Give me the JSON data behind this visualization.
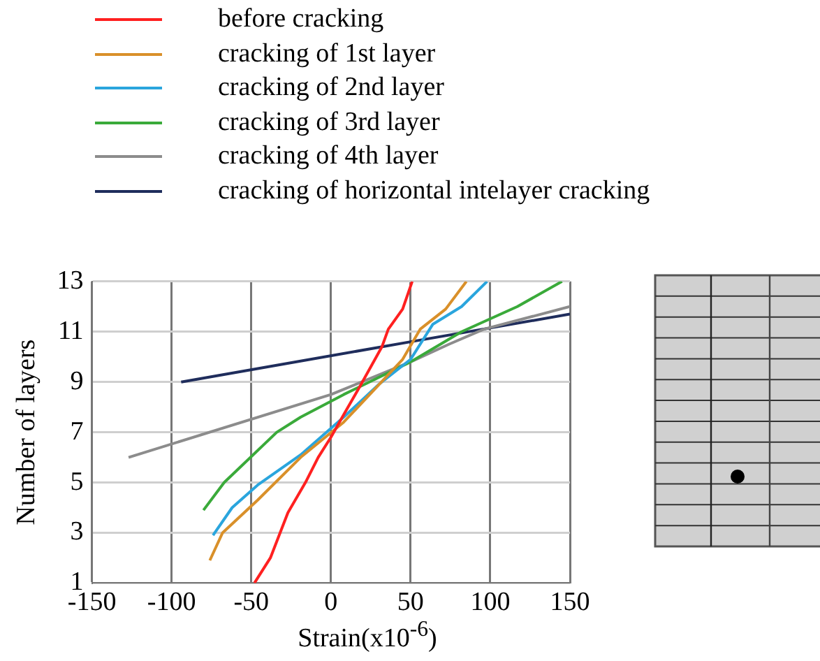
{
  "chart_data": {
    "type": "line",
    "xlabel": "Strain(x10$^{-6}$)",
    "ylabel": "Number of layers",
    "xlim": [
      -150,
      150
    ],
    "xticks": [
      -150,
      -100,
      -50,
      0,
      50,
      100,
      150
    ],
    "ylim": [
      1,
      13
    ],
    "yticks": [
      1,
      3,
      5,
      7,
      9,
      11,
      13
    ],
    "grid": true,
    "legend": "top",
    "marker": "none",
    "line_style": "solid",
    "series": [
      {
        "name": "before cracking",
        "color": "#ff2020",
        "x": [
          -48,
          -38,
          -27,
          -16,
          -8,
          0,
          8,
          18,
          32,
          36,
          45,
          51
        ],
        "values": [
          1,
          2,
          3.8,
          5,
          6,
          6.8,
          7.7,
          8.8,
          10.4,
          11.1,
          11.9,
          13
        ]
      },
      {
        "name": "cracking of 1st layer",
        "color": "#d9902a",
        "x": [
          -76,
          -68,
          -46,
          -19,
          8,
          45,
          56,
          72,
          85
        ],
        "values": [
          1.9,
          3,
          4.3,
          6,
          7.4,
          9.9,
          11.1,
          11.9,
          13
        ]
      },
      {
        "name": "cracking of 2nd layer",
        "color": "#2aa5dd",
        "x": [
          -74,
          -62,
          -46,
          -19,
          8,
          30,
          50,
          64,
          82,
          98
        ],
        "values": [
          2.9,
          4,
          4.9,
          6.1,
          7.6,
          8.9,
          9.9,
          11.3,
          12,
          13
        ]
      },
      {
        "name": "cracking of 3rd layer",
        "color": "#3aaa3a",
        "x": [
          -80,
          -67,
          -34,
          -19,
          8,
          50,
          82,
          117,
          145
        ],
        "values": [
          3.9,
          5,
          7,
          7.6,
          8.5,
          9.8,
          11,
          12,
          13
        ]
      },
      {
        "name": "cracking of 4th layer",
        "color": "#8c8c8c",
        "x": [
          -127,
          0,
          50,
          74,
          96,
          150
        ],
        "values": [
          6,
          8.5,
          9.8,
          10.5,
          11.1,
          12
        ]
      },
      {
        "name": "cracking of horizontal intelayer cracking",
        "color": "#1f2d5c",
        "x": [
          -94,
          50,
          150
        ],
        "values": [
          9,
          10.6,
          11.7
        ]
      }
    ]
  }
}
